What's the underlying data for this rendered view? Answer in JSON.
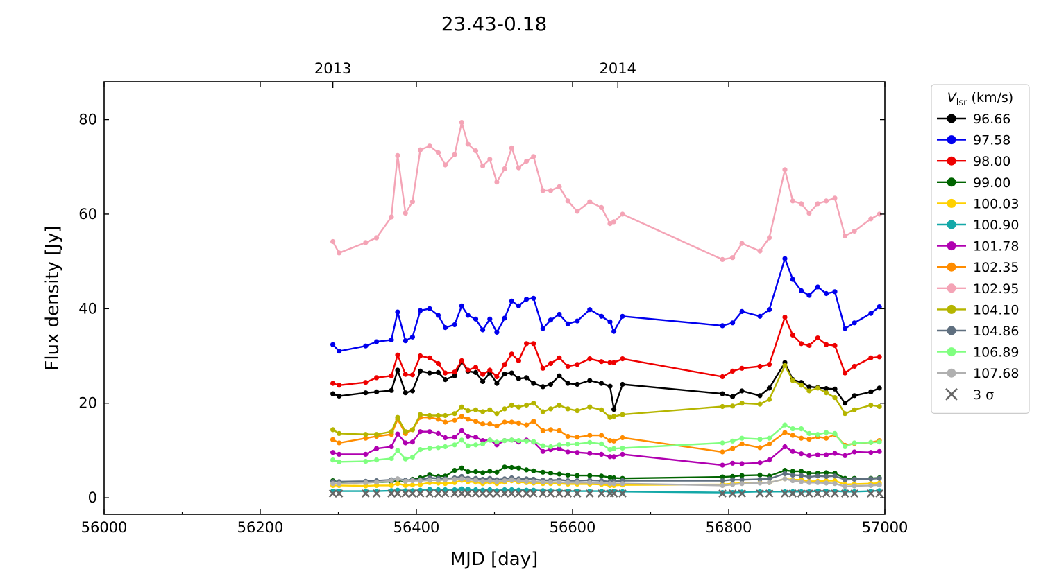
{
  "chart_data": {
    "type": "line",
    "title": "23.43-0.18",
    "xlabel": "MJD [day]",
    "ylabel": "Flux density [Jy]",
    "xlim": [
      56000,
      57000
    ],
    "ylim": [
      -3.5,
      88
    ],
    "x_ticks": [
      56000,
      56200,
      56400,
      56600,
      56800,
      57000
    ],
    "y_ticks": [
      0,
      20,
      40,
      60,
      80
    ],
    "top_axis_ticks": [
      {
        "label": "2013",
        "x": 56293
      },
      {
        "label": "2014",
        "x": 56658
      }
    ],
    "legend": {
      "title_symbol": "V",
      "title_subscript": "lsr",
      "title_unit": "(km/s)",
      "placement": "outside-right-top"
    },
    "x": [
      56293,
      56301,
      56335,
      56349,
      56368,
      56376,
      56386,
      56395,
      56405,
      56417,
      56428,
      56437,
      56449,
      56458,
      56466,
      56476,
      56485,
      56494,
      56503,
      56513,
      56522,
      56531,
      56541,
      56550,
      56562,
      56572,
      56583,
      56594,
      56606,
      56622,
      56637,
      56648,
      56653,
      56664,
      56792,
      56805,
      56817,
      56840,
      56852,
      56872,
      56882,
      56893,
      56903,
      56914,
      56925,
      56936,
      56949,
      56961,
      56982,
      56993
    ],
    "series": [
      {
        "name": "96.66",
        "color": "#000000",
        "values": [
          22,
          21.5,
          22.2,
          22.4,
          22.7,
          27,
          22.2,
          22.6,
          26.8,
          26.4,
          26.5,
          25,
          25.8,
          28.8,
          26.8,
          26.5,
          24.6,
          26.4,
          24.2,
          26.2,
          26.4,
          25.2,
          25.4,
          24.2,
          23.5,
          24,
          25.8,
          24.2,
          24,
          24.8,
          24.2,
          23.6,
          18.7,
          24,
          22,
          21.4,
          22.6,
          21.6,
          23.2,
          28.6,
          25,
          24.4,
          23.5,
          23.3,
          23.1,
          23,
          20,
          21.6,
          22.4,
          23.2
        ]
      },
      {
        "name": "97.58",
        "color": "#0000ee",
        "values": [
          32.4,
          31,
          32.1,
          33,
          33.4,
          39.3,
          33.2,
          34,
          39.6,
          40,
          38.6,
          36,
          36.6,
          40.6,
          38.6,
          37.8,
          35.5,
          37.8,
          35,
          38,
          41.6,
          40.6,
          42,
          42.2,
          35.8,
          37.6,
          38.8,
          36.8,
          37.4,
          39.8,
          38.4,
          37.2,
          35.2,
          38.4,
          36.4,
          37,
          39.4,
          38.4,
          39.8,
          50.6,
          46.2,
          43.8,
          42.8,
          44.6,
          43.2,
          43.6,
          35.8,
          37,
          39,
          40.4
        ]
      },
      {
        "name": "98.00",
        "color": "#ee0000",
        "values": [
          24.2,
          23.8,
          24.4,
          25.4,
          25.8,
          30.2,
          26.1,
          26,
          30,
          29.6,
          28.4,
          26.4,
          26.6,
          29,
          27,
          27.6,
          26.1,
          27,
          25.6,
          28.2,
          30.4,
          29,
          32.6,
          32.6,
          27.4,
          28.4,
          29.6,
          27.8,
          28.2,
          29.4,
          28.8,
          28.6,
          28.6,
          29.4,
          25.6,
          26.8,
          27.4,
          27.8,
          28.2,
          38.2,
          34.4,
          32.6,
          32.2,
          33.8,
          32.4,
          32.2,
          26.4,
          27.8,
          29.6,
          29.8
        ]
      },
      {
        "name": "99.00",
        "color": "#006400",
        "values": [
          3.6,
          3.3,
          3.2,
          3.3,
          3.4,
          3.7,
          3.5,
          3.9,
          4.2,
          4.9,
          4.5,
          4.6,
          5.8,
          6.3,
          5.5,
          5.5,
          5.3,
          5.6,
          5.4,
          6.5,
          6.4,
          6.3,
          5.9,
          5.7,
          5.4,
          5.2,
          5,
          4.8,
          4.7,
          4.7,
          4.6,
          4.3,
          4.2,
          4.1,
          4.4,
          4.5,
          4.7,
          4.8,
          4.6,
          5.8,
          5.6,
          5.6,
          5.2,
          5.2,
          5.3,
          5.2,
          4.1,
          4.1,
          4.1,
          4.2
        ]
      },
      {
        "name": "100.03",
        "color": "#ffd000",
        "values": [
          2.6,
          2.6,
          2.5,
          2.6,
          2.6,
          3,
          2.6,
          2.7,
          2.8,
          3.2,
          3.1,
          3,
          3.2,
          3.7,
          3.4,
          3.3,
          3,
          3.3,
          3,
          3.3,
          3.6,
          3.3,
          3.2,
          3.1,
          3,
          3,
          3,
          2.9,
          2.9,
          2.9,
          2.8,
          2.6,
          2.6,
          2.7,
          2.8,
          3,
          3.1,
          3.2,
          3.2,
          4,
          3.8,
          3.8,
          3.5,
          3.5,
          3.6,
          3.6,
          2.8,
          2.9,
          3,
          3.1
        ]
      },
      {
        "name": "100.90",
        "color": "#14a8a8",
        "values": [
          1.4,
          1.4,
          1.4,
          1.4,
          1.5,
          1.6,
          1.5,
          1.5,
          1.6,
          1.8,
          1.7,
          1.7,
          1.7,
          1.9,
          1.8,
          1.7,
          1.6,
          1.7,
          1.5,
          1.7,
          1.7,
          1.6,
          1.6,
          1.6,
          1.5,
          1.5,
          1.5,
          1.4,
          1.4,
          1.4,
          1.4,
          1.3,
          1.4,
          1.3,
          1.1,
          1.1,
          1.2,
          1.3,
          1.3,
          1.3,
          1.3,
          1.3,
          1.3,
          1.4,
          1.4,
          1.4,
          1.3,
          1.3,
          1.4,
          1.5
        ]
      },
      {
        "name": "101.78",
        "color": "#b000b0",
        "values": [
          9.6,
          9.2,
          9.2,
          10.4,
          10.8,
          13.5,
          11.6,
          11.8,
          14,
          14,
          13.6,
          12.7,
          12.8,
          14.2,
          13,
          12.8,
          12.1,
          12.2,
          11.2,
          12.1,
          12.2,
          11.8,
          12.2,
          11.8,
          9.8,
          10.2,
          10.4,
          9.7,
          9.6,
          9.4,
          9.2,
          8.7,
          8.7,
          9.2,
          6.9,
          7.3,
          7.2,
          7.4,
          8,
          10.8,
          9.8,
          9.3,
          8.9,
          9.1,
          9.1,
          9.4,
          8.9,
          9.7,
          9.6,
          9.8
        ]
      },
      {
        "name": "102.35",
        "color": "#ff8c00",
        "values": [
          12.3,
          11.6,
          12.6,
          13,
          13.4,
          16.6,
          13.6,
          14.4,
          17,
          17,
          16.6,
          16,
          16.4,
          17.2,
          16.6,
          16.2,
          15.6,
          15.6,
          15.2,
          16,
          16,
          15.8,
          15.4,
          16.2,
          14.2,
          14.4,
          14.2,
          13,
          12.8,
          13.2,
          13.2,
          12.1,
          12,
          12.7,
          9.7,
          10.4,
          11.4,
          10.6,
          11.4,
          13.8,
          13.2,
          12.6,
          12.4,
          12.9,
          12.6,
          13.4,
          11.1,
          11.5,
          11.7,
          12.1
        ]
      },
      {
        "name": "102.95",
        "color": "#f4a4b6",
        "values": [
          54.2,
          51.8,
          54,
          55,
          59.4,
          72.4,
          60.2,
          62.6,
          73.6,
          74.4,
          73,
          70.4,
          72.6,
          79.4,
          74.8,
          73.4,
          70.2,
          71.6,
          66.8,
          69.6,
          74,
          69.8,
          71.2,
          72.2,
          65,
          65,
          65.8,
          62.8,
          60.6,
          62.6,
          61.4,
          58,
          58.4,
          60,
          50.4,
          50.8,
          53.8,
          52.2,
          55,
          69.4,
          62.8,
          62.2,
          60.2,
          62.2,
          62.8,
          63.4,
          55.4,
          56.4,
          59,
          60
        ]
      },
      {
        "name": "104.10",
        "color": "#b5b500",
        "values": [
          14.4,
          13.6,
          13.4,
          13.4,
          14,
          17,
          14,
          14.4,
          17.6,
          17.4,
          17.4,
          17.4,
          17.8,
          19.2,
          18.4,
          18.6,
          18.2,
          18.6,
          17.8,
          18.8,
          19.6,
          19.2,
          19.6,
          20,
          18.2,
          18.8,
          19.6,
          18.8,
          18.4,
          19.2,
          18.6,
          17,
          17.2,
          17.6,
          19.3,
          19.4,
          20,
          19.8,
          20.8,
          28,
          24.8,
          23.8,
          22.6,
          23.2,
          22.2,
          21.2,
          17.8,
          18.6,
          19.6,
          19.3
        ]
      },
      {
        "name": "104.86",
        "color": "#5f6f7f",
        "values": [
          3.4,
          3.4,
          3.5,
          3.6,
          3.8,
          4,
          3.7,
          3.8,
          3.8,
          4.2,
          4.1,
          4,
          4.2,
          4.5,
          4.1,
          4.1,
          3.9,
          4.1,
          3.8,
          4,
          4.2,
          4,
          4,
          3.9,
          3.7,
          3.7,
          3.8,
          3.6,
          3.6,
          3.7,
          3.6,
          3.4,
          3.5,
          3.6,
          3.6,
          3.8,
          3.8,
          3.9,
          4,
          5.1,
          4.8,
          4.7,
          4.4,
          4.6,
          4.5,
          4.6,
          3.8,
          3.9,
          4,
          4.1
        ]
      },
      {
        "name": "106.89",
        "color": "#80ff80",
        "values": [
          8,
          7.6,
          7.7,
          8,
          8.3,
          10,
          8.2,
          8.6,
          10.2,
          10.5,
          10.6,
          10.8,
          11.2,
          12.2,
          11,
          11.2,
          11.4,
          12.2,
          11.8,
          12.1,
          12.2,
          12.1,
          12,
          11.9,
          11,
          10.8,
          11.2,
          11.3,
          11.4,
          11.7,
          11.4,
          10.2,
          10.4,
          10.5,
          11.6,
          12,
          12.6,
          12.4,
          12.6,
          15.4,
          14.6,
          14.6,
          13.6,
          13.4,
          13.8,
          13.6,
          10.8,
          11.6,
          11.7,
          11.8
        ]
      },
      {
        "name": "107.68",
        "color": "#b0b0b0",
        "values": [
          3,
          3,
          3.2,
          3.3,
          3.6,
          4,
          3.5,
          3.6,
          3.6,
          3.7,
          3.7,
          3.8,
          3.9,
          4,
          3.8,
          3.7,
          3.5,
          3.6,
          3.4,
          3.6,
          3.8,
          3.6,
          3.5,
          3.4,
          3.3,
          3.3,
          3.3,
          3.2,
          3.2,
          3.2,
          3.1,
          3,
          3,
          3,
          2.6,
          2.8,
          3,
          3.1,
          3.2,
          4,
          3.6,
          3.4,
          3.2,
          3.2,
          3.1,
          3,
          2.4,
          2.5,
          2.6,
          2.7
        ]
      }
    ],
    "three_sigma": {
      "name": "3 σ",
      "color": "#666666",
      "value": 0.9
    }
  }
}
